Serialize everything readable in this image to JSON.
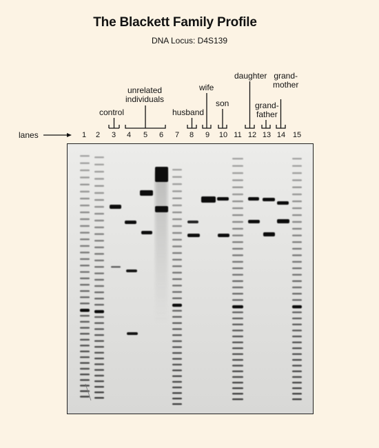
{
  "title": "The Blackett Family Profile",
  "subtitle": "DNA Locus: D4S139",
  "lanes_label": "lanes",
  "lane_numbers": [
    "1",
    "2",
    "3",
    "4",
    "5",
    "6",
    "7",
    "8",
    "9",
    "10",
    "11",
    "12",
    "13",
    "14",
    "15"
  ],
  "group_labels": {
    "control": "control",
    "unrelated_1": "unrelated",
    "unrelated_2": "individuals",
    "husband": "husband",
    "wife": "wife",
    "son": "son",
    "daughter": "daughter",
    "grandfather_1": "grand-",
    "grandfather_2": "father",
    "grandmother_1": "grand-",
    "grandmother_2": "mother"
  }
}
